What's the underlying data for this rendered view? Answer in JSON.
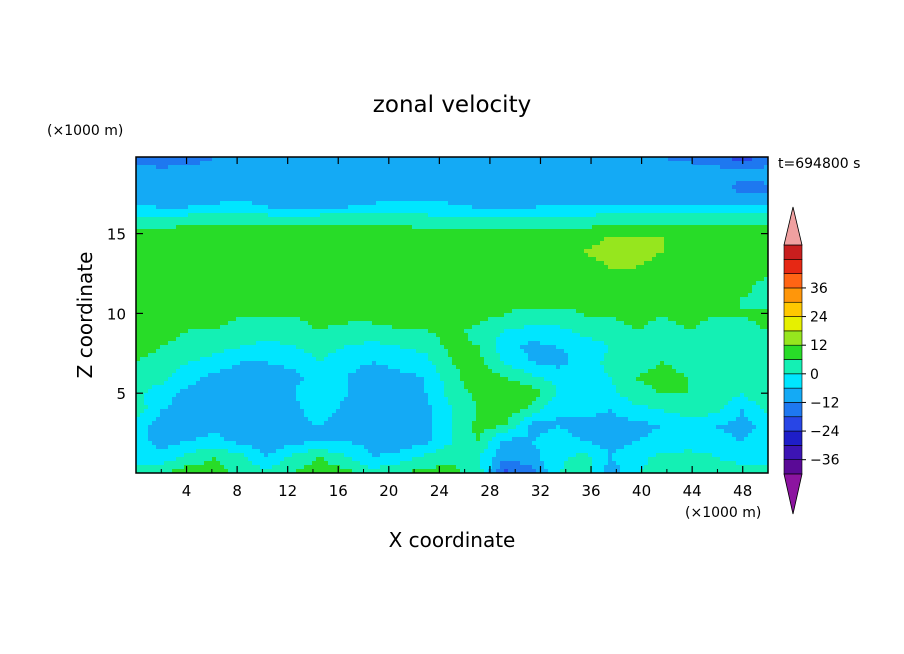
{
  "chart_data": {
    "type": "heatmap",
    "title": "zonal velocity",
    "xlabel": "X coordinate",
    "ylabel": "Z coordinate",
    "x_unit": "(×1000 m)",
    "y_unit": "(×1000 m)",
    "time_label": "t=694800 s",
    "xlim": [
      0,
      50
    ],
    "ylim": [
      0,
      19.8
    ],
    "x_ticks": [
      4,
      8,
      12,
      16,
      20,
      24,
      28,
      32,
      36,
      40,
      44,
      48
    ],
    "y_ticks": [
      5,
      10,
      15
    ],
    "colorbar": {
      "levels": [
        -42,
        -36,
        -30,
        -24,
        -18,
        -12,
        -6,
        0,
        6,
        12,
        18,
        24,
        30,
        36,
        42
      ],
      "labels": [
        36,
        24,
        12,
        0,
        -12,
        -24,
        -36
      ],
      "colors": [
        "#5a0a96",
        "#3c14b4",
        "#1e1ec8",
        "#2846e6",
        "#1e78f0",
        "#14aaf5",
        "#00e6ff",
        "#14f0b4",
        "#28dc28",
        "#96e61e",
        "#e6f000",
        "#ffc800",
        "#ff960a",
        "#ff6414",
        "#e62814",
        "#c81e1e"
      ],
      "over_color": "#f0a0a0",
      "under_color": "#8c14a0"
    },
    "z": [
      [
        2,
        6,
        10,
        8,
        4,
        2,
        6,
        10,
        8,
        2,
        6,
        8,
        8,
        4,
        -20,
        -15,
        0,
        4,
        -10,
        0,
        2,
        6,
        4,
        2,
        0
      ],
      [
        -2,
        -4,
        2,
        6,
        2,
        -6,
        2,
        6,
        0,
        -6,
        -4,
        2,
        4,
        0,
        -10,
        -8,
        -2,
        2,
        -6,
        -2,
        2,
        4,
        0,
        -2,
        0
      ],
      [
        -4,
        -8,
        -6,
        -4,
        -8,
        -10,
        -8,
        -6,
        -6,
        -8,
        -10,
        -8,
        0,
        6,
        -8,
        -6,
        -4,
        -6,
        -8,
        -6,
        -4,
        -6,
        -4,
        -6,
        -4
      ],
      [
        -4,
        -8,
        -10,
        -8,
        -10,
        -10,
        -8,
        -6,
        -10,
        -10,
        -8,
        -8,
        0,
        8,
        6,
        -8,
        -6,
        -8,
        -8,
        -8,
        -6,
        -4,
        -6,
        -8,
        -4
      ],
      [
        4,
        -6,
        -8,
        -10,
        -12,
        -10,
        -8,
        -2,
        -8,
        -12,
        -10,
        -8,
        0,
        6,
        10,
        4,
        -6,
        -4,
        -6,
        -2,
        0,
        4,
        2,
        -6,
        2
      ],
      [
        2,
        -4,
        -8,
        -10,
        -12,
        -10,
        -6,
        0,
        -6,
        -10,
        -8,
        -6,
        2,
        8,
        12,
        10,
        0,
        -6,
        -2,
        4,
        6,
        6,
        4,
        0,
        6
      ],
      [
        4,
        2,
        -4,
        -8,
        -10,
        -10,
        -8,
        -2,
        -6,
        -10,
        -8,
        -6,
        4,
        10,
        6,
        2,
        -2,
        -4,
        0,
        6,
        8,
        6,
        4,
        2,
        6
      ],
      [
        6,
        4,
        0,
        -2,
        -6,
        -6,
        -4,
        0,
        -4,
        -6,
        -4,
        -2,
        6,
        8,
        0,
        -6,
        -8,
        -4,
        2,
        4,
        6,
        4,
        2,
        0,
        4
      ],
      [
        8,
        6,
        4,
        2,
        0,
        -2,
        0,
        2,
        0,
        -2,
        0,
        2,
        8,
        6,
        -4,
        -8,
        -6,
        -4,
        0,
        2,
        4,
        2,
        0,
        2,
        4
      ],
      [
        8,
        8,
        6,
        6,
        4,
        4,
        4,
        6,
        4,
        4,
        6,
        6,
        8,
        4,
        0,
        -2,
        -2,
        2,
        4,
        6,
        4,
        6,
        4,
        4,
        6
      ],
      [
        10,
        10,
        8,
        8,
        6,
        6,
        6,
        8,
        8,
        8,
        8,
        8,
        10,
        8,
        6,
        4,
        4,
        6,
        6,
        8,
        6,
        8,
        6,
        6,
        8
      ],
      [
        10,
        10,
        8,
        8,
        8,
        8,
        8,
        8,
        8,
        8,
        8,
        8,
        10,
        10,
        8,
        8,
        8,
        8,
        8,
        8,
        8,
        8,
        8,
        6,
        4
      ],
      [
        8,
        10,
        10,
        10,
        10,
        10,
        10,
        10,
        10,
        10,
        10,
        10,
        10,
        10,
        10,
        10,
        10,
        10,
        10,
        10,
        10,
        10,
        10,
        8,
        4
      ],
      [
        10,
        10,
        10,
        10,
        10,
        10,
        10,
        10,
        10,
        10,
        10,
        10,
        10,
        10,
        10,
        10,
        10,
        10,
        12,
        12,
        10,
        10,
        10,
        10,
        10
      ],
      [
        10,
        10,
        10,
        10,
        10,
        10,
        10,
        10,
        10,
        10,
        10,
        10,
        10,
        10,
        10,
        10,
        10,
        12,
        14,
        14,
        12,
        10,
        10,
        10,
        10
      ],
      [
        10,
        10,
        10,
        10,
        10,
        10,
        10,
        10,
        10,
        10,
        10,
        10,
        10,
        10,
        10,
        10,
        10,
        10,
        12,
        12,
        12,
        10,
        10,
        10,
        10
      ],
      [
        2,
        2,
        4,
        4,
        4,
        4,
        4,
        4,
        4,
        4,
        4,
        2,
        2,
        2,
        2,
        2,
        2,
        2,
        4,
        4,
        4,
        4,
        4,
        4,
        4
      ],
      [
        -6,
        -8,
        -8,
        -6,
        -4,
        -8,
        -10,
        -8,
        -8,
        -6,
        -4,
        -4,
        -6,
        -8,
        -8,
        -8,
        -6,
        -6,
        -6,
        -6,
        -6,
        -6,
        -6,
        -6,
        -8
      ],
      [
        -8,
        -10,
        -12,
        -10,
        -10,
        -12,
        -12,
        -10,
        -10,
        -8,
        -10,
        -12,
        -10,
        -10,
        -10,
        -10,
        -8,
        -8,
        -8,
        -8,
        -10,
        -10,
        -10,
        -14,
        -14
      ],
      [
        -10,
        -10,
        -10,
        -10,
        -8,
        -8,
        -10,
        -10,
        -12,
        -10,
        -8,
        -8,
        -8,
        -10,
        -10,
        -8,
        -8,
        -8,
        -8,
        -10,
        -10,
        -8,
        -8,
        -10,
        -8
      ],
      [
        -14,
        -16,
        -14,
        -12,
        -12,
        -12,
        -12,
        -10,
        -10,
        -10,
        -10,
        -10,
        -12,
        -12,
        -10,
        -10,
        -10,
        -10,
        -10,
        -12,
        -12,
        -14,
        -18,
        -20,
        -18
      ]
    ]
  }
}
